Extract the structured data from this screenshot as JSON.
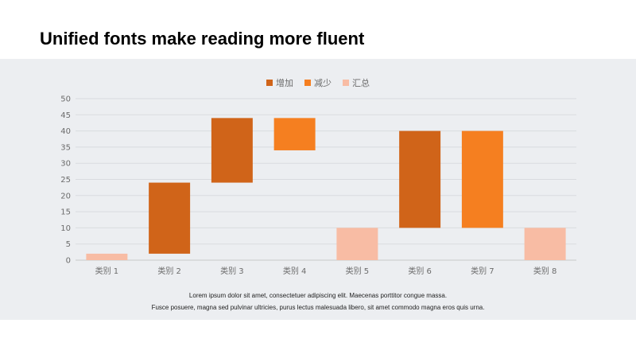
{
  "page": {
    "title": "Unified fonts make reading more fluent",
    "caption_line1": "Lorem ipsum dolor sit amet, consectetuer adipiscing elit. Maecenas porttitor congue massa.",
    "caption_line2": "Fusce posuere, magna sed pulvinar ultricies, purus lectus malesuada libero, sit amet commodo magna eros quis urna."
  },
  "legend": [
    {
      "label": "增加",
      "color": "#d06419"
    },
    {
      "label": "减少",
      "color": "#f57f20"
    },
    {
      "label": "汇总",
      "color": "#f8bca4"
    }
  ],
  "chart_data": {
    "type": "bar",
    "subtype": "waterfall",
    "categories": [
      "类别 1",
      "类别 2",
      "类别 3",
      "类别 4",
      "类别 5",
      "类别 6",
      "类别 7",
      "类别 8"
    ],
    "bars": [
      {
        "kind": "汇总",
        "start": 0,
        "end": 2
      },
      {
        "kind": "增加",
        "start": 2,
        "end": 24
      },
      {
        "kind": "增加",
        "start": 24,
        "end": 44
      },
      {
        "kind": "减少",
        "start": 34,
        "end": 44
      },
      {
        "kind": "汇总",
        "start": 0,
        "end": 10
      },
      {
        "kind": "增加",
        "start": 10,
        "end": 40
      },
      {
        "kind": "减少",
        "start": 10,
        "end": 40
      },
      {
        "kind": "汇总",
        "start": 0,
        "end": 10
      }
    ],
    "y_ticks": [
      0,
      5,
      10,
      15,
      20,
      25,
      30,
      35,
      40,
      45,
      50
    ],
    "ylim": [
      0,
      50
    ],
    "grid": true,
    "legend_position": "top-center",
    "colors": {
      "增加": "#d06419",
      "减少": "#f57f20",
      "汇总": "#f8bca4"
    }
  }
}
